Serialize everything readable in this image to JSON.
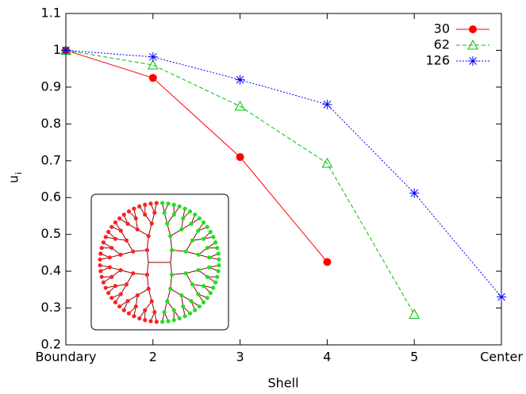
{
  "chart_data": {
    "type": "line",
    "xlabel": "Shell",
    "ylabel": "u",
    "ylabel_subscript": "i",
    "categories": [
      "Boundary",
      "2",
      "3",
      "4",
      "5",
      "Center"
    ],
    "ylim": [
      0.2,
      1.1
    ],
    "yticks": [
      0.2,
      0.3,
      0.4,
      0.5,
      0.6,
      0.7,
      0.8,
      0.9,
      1,
      1.1
    ],
    "legend": "upper right",
    "series": [
      {
        "name": "30",
        "color": "#ff0000",
        "marker": "circle",
        "linestyle": "solid",
        "values": [
          1.0,
          0.925,
          0.71,
          0.425,
          null,
          null
        ]
      },
      {
        "name": "62",
        "color": "#00c000",
        "marker": "triangle",
        "linestyle": "dashed",
        "values": [
          1.0,
          0.96,
          0.848,
          0.693,
          0.283,
          null
        ]
      },
      {
        "name": "126",
        "color": "#0000ff",
        "marker": "asterisk",
        "linestyle": "dotted",
        "values": [
          1.0,
          0.982,
          0.92,
          0.853,
          0.612,
          0.33
        ]
      }
    ]
  }
}
